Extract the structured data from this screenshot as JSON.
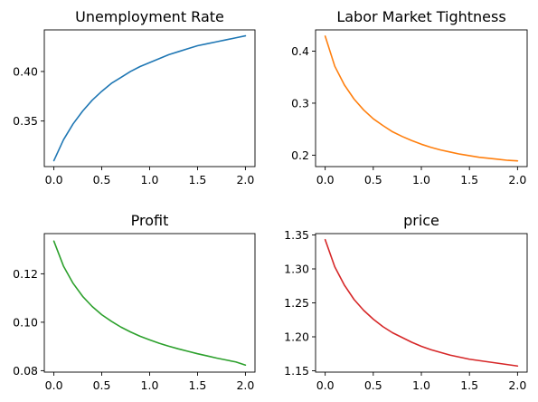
{
  "chart_data": [
    {
      "type": "line",
      "title": "Unemployment Rate",
      "xlabel": "",
      "ylabel": "",
      "color": "#1f77b4",
      "xlim": [
        -0.1,
        2.1
      ],
      "ylim": [
        0.304,
        0.442
      ],
      "xticks": [
        0.0,
        0.5,
        1.0,
        1.5,
        2.0
      ],
      "xtick_labels": [
        "0.0",
        "0.5",
        "1.0",
        "1.5",
        "2.0"
      ],
      "yticks": [
        0.35,
        0.4
      ],
      "ytick_labels": [
        "0.35",
        "0.40"
      ],
      "grid": false,
      "x": [
        0.0,
        0.1,
        0.2,
        0.3,
        0.4,
        0.5,
        0.6,
        0.7,
        0.8,
        0.9,
        1.0,
        1.1,
        1.2,
        1.3,
        1.4,
        1.5,
        1.6,
        1.7,
        1.8,
        1.9,
        2.0
      ],
      "y": [
        0.31,
        0.331,
        0.347,
        0.36,
        0.371,
        0.38,
        0.388,
        0.394,
        0.4,
        0.405,
        0.409,
        0.413,
        0.417,
        0.42,
        0.423,
        0.426,
        0.428,
        0.43,
        0.432,
        0.434,
        0.436
      ]
    },
    {
      "type": "line",
      "title": "Labor Market Tightness",
      "xlabel": "",
      "ylabel": "",
      "color": "#ff7f0e",
      "xlim": [
        -0.1,
        2.1
      ],
      "ylim": [
        0.178,
        0.441
      ],
      "xticks": [
        0.0,
        0.5,
        1.0,
        1.5,
        2.0
      ],
      "xtick_labels": [
        "0.0",
        "0.5",
        "1.0",
        "1.5",
        "2.0"
      ],
      "yticks": [
        0.2,
        0.3,
        0.4
      ],
      "ytick_labels": [
        "0.2",
        "0.3",
        "0.4"
      ],
      "grid": false,
      "x": [
        0.0,
        0.1,
        0.2,
        0.3,
        0.4,
        0.5,
        0.6,
        0.7,
        0.8,
        0.9,
        1.0,
        1.1,
        1.2,
        1.3,
        1.4,
        1.5,
        1.6,
        1.7,
        1.8,
        1.9,
        2.0
      ],
      "y": [
        0.429,
        0.371,
        0.335,
        0.308,
        0.287,
        0.27,
        0.257,
        0.245,
        0.236,
        0.228,
        0.221,
        0.215,
        0.21,
        0.206,
        0.202,
        0.199,
        0.196,
        0.194,
        0.192,
        0.19,
        0.189
      ]
    },
    {
      "type": "line",
      "title": "Profit",
      "xlabel": "",
      "ylabel": "",
      "color": "#2ca02c",
      "xlim": [
        -0.1,
        2.1
      ],
      "ylim": [
        0.0794,
        0.1366
      ],
      "xticks": [
        0.0,
        0.5,
        1.0,
        1.5,
        2.0
      ],
      "xtick_labels": [
        "0.0",
        "0.5",
        "1.0",
        "1.5",
        "2.0"
      ],
      "yticks": [
        0.08,
        0.1,
        0.12
      ],
      "ytick_labels": [
        "0.08",
        "0.10",
        "0.12"
      ],
      "grid": false,
      "x": [
        0.0,
        0.1,
        0.2,
        0.3,
        0.4,
        0.5,
        0.6,
        0.7,
        0.8,
        0.9,
        1.0,
        1.1,
        1.2,
        1.3,
        1.4,
        1.5,
        1.6,
        1.7,
        1.8,
        1.9,
        2.0
      ],
      "y": [
        0.1335,
        0.1232,
        0.1161,
        0.1107,
        0.1065,
        0.1031,
        0.1004,
        0.098,
        0.096,
        0.0942,
        0.0927,
        0.0913,
        0.0901,
        0.089,
        0.088,
        0.087,
        0.0861,
        0.0852,
        0.0844,
        0.0836,
        0.0823
      ]
    },
    {
      "type": "line",
      "title": "price",
      "xlabel": "",
      "ylabel": "",
      "color": "#d62728",
      "xlim": [
        -0.1,
        2.1
      ],
      "ylim": [
        1.148,
        1.352
      ],
      "xticks": [
        0.0,
        0.5,
        1.0,
        1.5,
        2.0
      ],
      "xtick_labels": [
        "0.0",
        "0.5",
        "1.0",
        "1.5",
        "2.0"
      ],
      "yticks": [
        1.15,
        1.2,
        1.25,
        1.3,
        1.35
      ],
      "ytick_labels": [
        "1.15",
        "1.20",
        "1.25",
        "1.30",
        "1.35"
      ],
      "grid": false,
      "x": [
        0.0,
        0.1,
        0.2,
        0.3,
        0.4,
        0.5,
        0.6,
        0.7,
        0.8,
        0.9,
        1.0,
        1.1,
        1.2,
        1.3,
        1.4,
        1.5,
        1.6,
        1.7,
        1.8,
        1.9,
        2.0
      ],
      "y": [
        1.343,
        1.303,
        1.276,
        1.255,
        1.239,
        1.226,
        1.215,
        1.206,
        1.199,
        1.192,
        1.186,
        1.181,
        1.177,
        1.173,
        1.17,
        1.167,
        1.165,
        1.163,
        1.161,
        1.159,
        1.157
      ]
    }
  ]
}
